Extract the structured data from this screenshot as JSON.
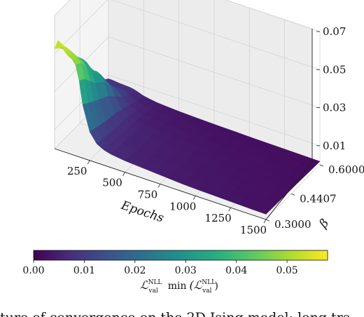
{
  "chart_data": {
    "type": "surface3d",
    "x_label": "Epochs",
    "y_label": "β",
    "x_ticks": [
      250,
      500,
      750,
      1000,
      1250,
      1500
    ],
    "x_range": [
      1,
      1500
    ],
    "y_ticks": [
      "0.3000",
      "0.4407",
      "0.6000"
    ],
    "y_values": [
      0.3,
      0.33,
      0.36,
      0.39,
      0.4407,
      0.48,
      0.52,
      0.56,
      0.6
    ],
    "z_ticks": [
      "0.01",
      "0.03",
      "0.05",
      "0.07"
    ],
    "z_range": [
      0.0,
      0.07
    ],
    "epochs": [
      1,
      25,
      50,
      75,
      100,
      125,
      150,
      175,
      200,
      250,
      300,
      350,
      400,
      500,
      600,
      700,
      800,
      900,
      1000,
      1100,
      1200,
      1300,
      1400,
      1500
    ],
    "surface": [
      [
        0.0525,
        0.0575,
        0.055,
        0.0525,
        0.051,
        0.05,
        0.0475,
        0.04,
        0.028,
        0.015,
        0.01,
        0.008,
        0.007,
        0.006,
        0.0055,
        0.005,
        0.0045,
        0.004,
        0.0037,
        0.0035,
        0.0033,
        0.0031,
        0.0029,
        0.0028
      ],
      [
        0.05,
        0.052,
        0.051,
        0.05,
        0.049,
        0.048,
        0.046,
        0.038,
        0.026,
        0.014,
        0.0095,
        0.0078,
        0.0068,
        0.0058,
        0.0052,
        0.0048,
        0.0044,
        0.0039,
        0.0036,
        0.0034,
        0.0032,
        0.003,
        0.0028,
        0.0027
      ],
      [
        0.046,
        0.047,
        0.046,
        0.045,
        0.044,
        0.043,
        0.041,
        0.034,
        0.024,
        0.013,
        0.009,
        0.0075,
        0.0066,
        0.0056,
        0.005,
        0.0046,
        0.0042,
        0.0038,
        0.0035,
        0.0033,
        0.0031,
        0.0029,
        0.0027,
        0.0026
      ],
      [
        0.04,
        0.041,
        0.04,
        0.038,
        0.037,
        0.036,
        0.035,
        0.03,
        0.022,
        0.012,
        0.0085,
        0.0072,
        0.0063,
        0.0054,
        0.0048,
        0.0044,
        0.004,
        0.0036,
        0.0034,
        0.0032,
        0.003,
        0.0028,
        0.0026,
        0.0025
      ],
      [
        0.033,
        0.034,
        0.033,
        0.031,
        0.03,
        0.03,
        0.029,
        0.026,
        0.019,
        0.011,
        0.008,
        0.0068,
        0.006,
        0.0051,
        0.0046,
        0.0042,
        0.0038,
        0.0035,
        0.0032,
        0.003,
        0.0028,
        0.0027,
        0.0025,
        0.0024
      ],
      [
        0.024,
        0.025,
        0.024,
        0.023,
        0.022,
        0.022,
        0.021,
        0.019,
        0.015,
        0.0095,
        0.0072,
        0.0062,
        0.0055,
        0.0047,
        0.0042,
        0.0039,
        0.0036,
        0.0033,
        0.003,
        0.0028,
        0.0027,
        0.0025,
        0.0024,
        0.0023
      ],
      [
        0.016,
        0.016,
        0.0155,
        0.015,
        0.0145,
        0.014,
        0.014,
        0.013,
        0.011,
        0.0078,
        0.0062,
        0.0054,
        0.0048,
        0.0042,
        0.0038,
        0.0035,
        0.0032,
        0.003,
        0.0028,
        0.0026,
        0.0025,
        0.0023,
        0.0022,
        0.0021
      ],
      [
        0.011,
        0.011,
        0.0105,
        0.01,
        0.01,
        0.0098,
        0.0096,
        0.0092,
        0.0082,
        0.0063,
        0.0052,
        0.0046,
        0.0042,
        0.0037,
        0.0034,
        0.0031,
        0.0029,
        0.0027,
        0.0025,
        0.0024,
        0.0023,
        0.0021,
        0.002,
        0.0019
      ],
      [
        0.008,
        0.008,
        0.0078,
        0.0076,
        0.0075,
        0.0074,
        0.0073,
        0.007,
        0.0065,
        0.0052,
        0.0045,
        0.004,
        0.0037,
        0.0033,
        0.003,
        0.0028,
        0.0026,
        0.0025,
        0.0023,
        0.0022,
        0.0021,
        0.002,
        0.0019,
        0.0018
      ]
    ],
    "colorbar": {
      "colormap": "viridis",
      "range": [
        0.0,
        0.058
      ],
      "ticks": [
        "0.00",
        "0.01",
        "0.02",
        "0.03",
        "0.04",
        "0.05"
      ],
      "label_parts": [
        "ℒ",
        "NLL",
        "val",
        "min",
        "(ℒ",
        "NLL",
        "val",
        ")"
      ]
    }
  },
  "caption": "ture of convergence on the 2D Ising model: long tra..."
}
